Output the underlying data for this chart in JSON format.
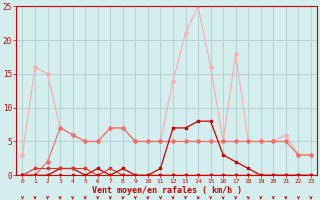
{
  "hours": [
    0,
    1,
    2,
    3,
    4,
    5,
    6,
    7,
    8,
    9,
    10,
    11,
    12,
    13,
    14,
    15,
    16,
    17,
    18,
    19,
    20,
    21,
    22,
    23
  ],
  "vent_moyen": [
    3,
    16,
    15,
    7,
    6,
    5,
    5,
    7,
    7,
    5,
    5,
    5,
    14,
    21,
    25,
    16,
    5,
    18,
    5,
    5,
    5,
    6,
    3,
    3
  ],
  "rafales": [
    0,
    0,
    2,
    7,
    6,
    5,
    5,
    7,
    7,
    5,
    5,
    5,
    5,
    5,
    5,
    5,
    5,
    5,
    5,
    5,
    5,
    5,
    3,
    3
  ],
  "dark_line1": [
    0,
    0,
    0,
    1,
    1,
    0,
    1,
    0,
    1,
    0,
    0,
    1,
    7,
    7,
    8,
    8,
    3,
    2,
    1,
    0,
    0,
    0,
    0,
    0
  ],
  "dark_line2": [
    0,
    1,
    1,
    1,
    1,
    1,
    0,
    1,
    0,
    0,
    0,
    0,
    0,
    0,
    0,
    0,
    0,
    0,
    0,
    0,
    0,
    0,
    0,
    0
  ],
  "zero_line": [
    0,
    0,
    0,
    0,
    0,
    0,
    0,
    0,
    0,
    0,
    0,
    0,
    0,
    0,
    0,
    0,
    0,
    0,
    0,
    0,
    0,
    0,
    0,
    0
  ],
  "color_light_pink": "#f8b0b0",
  "color_mid_pink": "#f07070",
  "color_dark_red": "#cc0000",
  "color_med_red": "#e03030",
  "bg_color": "#d4eeee",
  "grid_color": "#a8c8c8",
  "xlabel": "Vent moyen/en rafales ( km/h )",
  "ylim": [
    0,
    25
  ],
  "xlim_min": -0.5,
  "xlim_max": 23.5,
  "yticks": [
    0,
    5,
    10,
    15,
    20,
    25
  ],
  "xticks": [
    0,
    1,
    2,
    3,
    4,
    5,
    6,
    7,
    8,
    9,
    10,
    11,
    12,
    13,
    14,
    15,
    16,
    17,
    18,
    19,
    20,
    21,
    22,
    23
  ]
}
